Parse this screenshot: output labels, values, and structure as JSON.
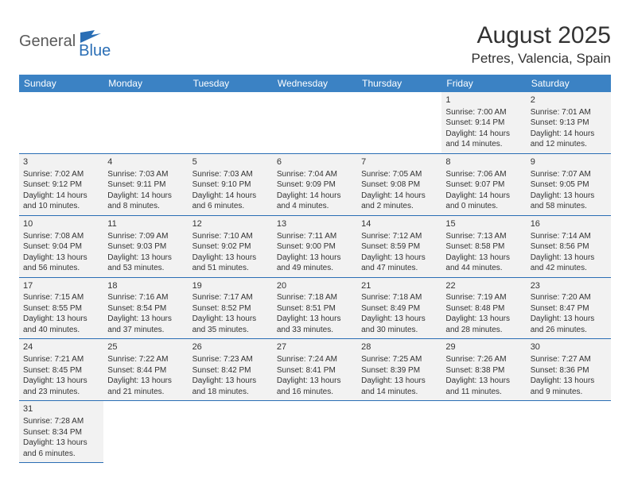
{
  "logo": {
    "general": "General",
    "blue": "Blue"
  },
  "header": {
    "month_title": "August 2025",
    "location": "Petres, Valencia, Spain"
  },
  "colors": {
    "header_bg": "#3b82c4",
    "row_bg": "#f2f2f2",
    "border": "#2a6eb5",
    "text": "#333333"
  },
  "day_labels": [
    "Sunday",
    "Monday",
    "Tuesday",
    "Wednesday",
    "Thursday",
    "Friday",
    "Saturday"
  ],
  "weeks": [
    [
      null,
      null,
      null,
      null,
      null,
      {
        "n": "1",
        "sr": "Sunrise: 7:00 AM",
        "ss": "Sunset: 9:14 PM",
        "d1": "Daylight: 14 hours",
        "d2": "and 14 minutes."
      },
      {
        "n": "2",
        "sr": "Sunrise: 7:01 AM",
        "ss": "Sunset: 9:13 PM",
        "d1": "Daylight: 14 hours",
        "d2": "and 12 minutes."
      }
    ],
    [
      {
        "n": "3",
        "sr": "Sunrise: 7:02 AM",
        "ss": "Sunset: 9:12 PM",
        "d1": "Daylight: 14 hours",
        "d2": "and 10 minutes."
      },
      {
        "n": "4",
        "sr": "Sunrise: 7:03 AM",
        "ss": "Sunset: 9:11 PM",
        "d1": "Daylight: 14 hours",
        "d2": "and 8 minutes."
      },
      {
        "n": "5",
        "sr": "Sunrise: 7:03 AM",
        "ss": "Sunset: 9:10 PM",
        "d1": "Daylight: 14 hours",
        "d2": "and 6 minutes."
      },
      {
        "n": "6",
        "sr": "Sunrise: 7:04 AM",
        "ss": "Sunset: 9:09 PM",
        "d1": "Daylight: 14 hours",
        "d2": "and 4 minutes."
      },
      {
        "n": "7",
        "sr": "Sunrise: 7:05 AM",
        "ss": "Sunset: 9:08 PM",
        "d1": "Daylight: 14 hours",
        "d2": "and 2 minutes."
      },
      {
        "n": "8",
        "sr": "Sunrise: 7:06 AM",
        "ss": "Sunset: 9:07 PM",
        "d1": "Daylight: 14 hours",
        "d2": "and 0 minutes."
      },
      {
        "n": "9",
        "sr": "Sunrise: 7:07 AM",
        "ss": "Sunset: 9:05 PM",
        "d1": "Daylight: 13 hours",
        "d2": "and 58 minutes."
      }
    ],
    [
      {
        "n": "10",
        "sr": "Sunrise: 7:08 AM",
        "ss": "Sunset: 9:04 PM",
        "d1": "Daylight: 13 hours",
        "d2": "and 56 minutes."
      },
      {
        "n": "11",
        "sr": "Sunrise: 7:09 AM",
        "ss": "Sunset: 9:03 PM",
        "d1": "Daylight: 13 hours",
        "d2": "and 53 minutes."
      },
      {
        "n": "12",
        "sr": "Sunrise: 7:10 AM",
        "ss": "Sunset: 9:02 PM",
        "d1": "Daylight: 13 hours",
        "d2": "and 51 minutes."
      },
      {
        "n": "13",
        "sr": "Sunrise: 7:11 AM",
        "ss": "Sunset: 9:00 PM",
        "d1": "Daylight: 13 hours",
        "d2": "and 49 minutes."
      },
      {
        "n": "14",
        "sr": "Sunrise: 7:12 AM",
        "ss": "Sunset: 8:59 PM",
        "d1": "Daylight: 13 hours",
        "d2": "and 47 minutes."
      },
      {
        "n": "15",
        "sr": "Sunrise: 7:13 AM",
        "ss": "Sunset: 8:58 PM",
        "d1": "Daylight: 13 hours",
        "d2": "and 44 minutes."
      },
      {
        "n": "16",
        "sr": "Sunrise: 7:14 AM",
        "ss": "Sunset: 8:56 PM",
        "d1": "Daylight: 13 hours",
        "d2": "and 42 minutes."
      }
    ],
    [
      {
        "n": "17",
        "sr": "Sunrise: 7:15 AM",
        "ss": "Sunset: 8:55 PM",
        "d1": "Daylight: 13 hours",
        "d2": "and 40 minutes."
      },
      {
        "n": "18",
        "sr": "Sunrise: 7:16 AM",
        "ss": "Sunset: 8:54 PM",
        "d1": "Daylight: 13 hours",
        "d2": "and 37 minutes."
      },
      {
        "n": "19",
        "sr": "Sunrise: 7:17 AM",
        "ss": "Sunset: 8:52 PM",
        "d1": "Daylight: 13 hours",
        "d2": "and 35 minutes."
      },
      {
        "n": "20",
        "sr": "Sunrise: 7:18 AM",
        "ss": "Sunset: 8:51 PM",
        "d1": "Daylight: 13 hours",
        "d2": "and 33 minutes."
      },
      {
        "n": "21",
        "sr": "Sunrise: 7:18 AM",
        "ss": "Sunset: 8:49 PM",
        "d1": "Daylight: 13 hours",
        "d2": "and 30 minutes."
      },
      {
        "n": "22",
        "sr": "Sunrise: 7:19 AM",
        "ss": "Sunset: 8:48 PM",
        "d1": "Daylight: 13 hours",
        "d2": "and 28 minutes."
      },
      {
        "n": "23",
        "sr": "Sunrise: 7:20 AM",
        "ss": "Sunset: 8:47 PM",
        "d1": "Daylight: 13 hours",
        "d2": "and 26 minutes."
      }
    ],
    [
      {
        "n": "24",
        "sr": "Sunrise: 7:21 AM",
        "ss": "Sunset: 8:45 PM",
        "d1": "Daylight: 13 hours",
        "d2": "and 23 minutes."
      },
      {
        "n": "25",
        "sr": "Sunrise: 7:22 AM",
        "ss": "Sunset: 8:44 PM",
        "d1": "Daylight: 13 hours",
        "d2": "and 21 minutes."
      },
      {
        "n": "26",
        "sr": "Sunrise: 7:23 AM",
        "ss": "Sunset: 8:42 PM",
        "d1": "Daylight: 13 hours",
        "d2": "and 18 minutes."
      },
      {
        "n": "27",
        "sr": "Sunrise: 7:24 AM",
        "ss": "Sunset: 8:41 PM",
        "d1": "Daylight: 13 hours",
        "d2": "and 16 minutes."
      },
      {
        "n": "28",
        "sr": "Sunrise: 7:25 AM",
        "ss": "Sunset: 8:39 PM",
        "d1": "Daylight: 13 hours",
        "d2": "and 14 minutes."
      },
      {
        "n": "29",
        "sr": "Sunrise: 7:26 AM",
        "ss": "Sunset: 8:38 PM",
        "d1": "Daylight: 13 hours",
        "d2": "and 11 minutes."
      },
      {
        "n": "30",
        "sr": "Sunrise: 7:27 AM",
        "ss": "Sunset: 8:36 PM",
        "d1": "Daylight: 13 hours",
        "d2": "and 9 minutes."
      }
    ],
    [
      {
        "n": "31",
        "sr": "Sunrise: 7:28 AM",
        "ss": "Sunset: 8:34 PM",
        "d1": "Daylight: 13 hours",
        "d2": "and 6 minutes."
      },
      null,
      null,
      null,
      null,
      null,
      null
    ]
  ]
}
